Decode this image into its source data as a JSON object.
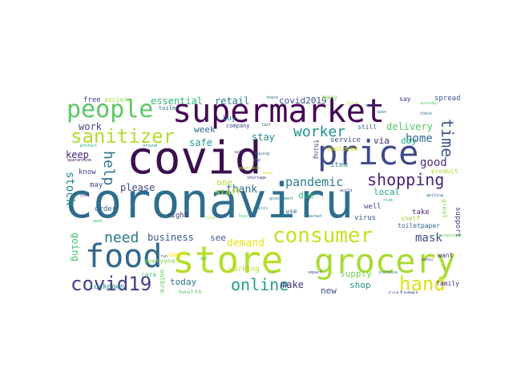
{
  "words": [
    {
      "text": "coronaviru",
      "color": "#2e6e8e"
    },
    {
      "text": "covid",
      "color": "#3b0f4f"
    },
    {
      "text": "store",
      "color": "#b5de2b"
    },
    {
      "text": "grocery",
      "color": "#a8db34"
    },
    {
      "text": "supermarket",
      "color": "#440154"
    },
    {
      "text": "price",
      "color": "#3e4a89"
    },
    {
      "text": "consumer",
      "color": "#c8e020"
    },
    {
      "text": "food",
      "color": "#31688e"
    },
    {
      "text": "people",
      "color": "#5cc863"
    },
    {
      "text": "covid19",
      "color": "#433e85"
    },
    {
      "text": "hand",
      "color": "#d8e219"
    },
    {
      "text": "sanitizer",
      "color": "#b0dd2f"
    },
    {
      "text": "shopping",
      "color": "#482475"
    },
    {
      "text": "online",
      "color": "#1fa187"
    },
    {
      "text": "worker",
      "color": "#21918c"
    },
    {
      "text": "need",
      "color": "#2a788e"
    },
    {
      "text": "time",
      "color": "#3b528b"
    },
    {
      "text": "help",
      "color": "#2c738e"
    },
    {
      "text": "pandemic",
      "color": "#277f8e"
    },
    {
      "text": "stock",
      "color": "#25858e"
    },
    {
      "text": "mask",
      "color": "#3e4989"
    },
    {
      "text": "demand",
      "color": "#e5e419"
    },
    {
      "text": "please",
      "color": "#404688"
    },
    {
      "text": "thank",
      "color": "#2d708e"
    },
    {
      "text": "home",
      "color": "#31688e"
    },
    {
      "text": "business",
      "color": "#38588c"
    },
    {
      "text": "good",
      "color": "#472c7a"
    },
    {
      "text": "make",
      "color": "#46337f"
    },
    {
      "text": "going",
      "color": "#4ac16d"
    },
    {
      "text": "essential",
      "color": "#35b779"
    },
    {
      "text": "retail",
      "color": "#2a788e"
    },
    {
      "text": "delivery",
      "color": "#54c568"
    },
    {
      "text": "work",
      "color": "#3f4788"
    },
    {
      "text": "keep",
      "color": "#482677"
    },
    {
      "text": "safe",
      "color": "#1e9b8a"
    },
    {
      "text": "stay",
      "color": "#23888e"
    },
    {
      "text": "week",
      "color": "#2f6b8e"
    },
    {
      "text": "covid2019",
      "color": "#3a548c"
    },
    {
      "text": "day",
      "color": "#29af7f"
    },
    {
      "text": "local",
      "color": "#20a386"
    },
    {
      "text": "due",
      "color": "#2db27d"
    },
    {
      "text": "staff",
      "color": "#c0df25"
    },
    {
      "text": "one",
      "color": "#addc30"
    },
    {
      "text": "see",
      "color": "#365c8d"
    },
    {
      "text": "today",
      "color": "#2a778e"
    },
    {
      "text": "new",
      "color": "#3c508b"
    },
    {
      "text": "shop",
      "color": "#1f958b"
    },
    {
      "text": "supply",
      "color": "#75d054"
    },
    {
      "text": "via",
      "color": "#482071"
    },
    {
      "text": "know",
      "color": "#404588"
    },
    {
      "text": "may",
      "color": "#3d4d8a"
    },
    {
      "text": "order",
      "color": "#355f8d"
    },
    {
      "text": "right",
      "color": "#46307e"
    },
    {
      "text": "virus",
      "color": "#3a538b"
    },
    {
      "text": "take",
      "color": "#481d6f"
    },
    {
      "text": "free",
      "color": "#3f4889"
    },
    {
      "text": "social",
      "color": "#a0da39"
    },
    {
      "text": "buy",
      "color": "#24878e"
    },
    {
      "text": "care",
      "color": "#4cc26c"
    },
    {
      "text": "health",
      "color": "#56c667"
    },
    {
      "text": "working",
      "color": "#b5de2b"
    },
    {
      "text": "service",
      "color": "#3a538b"
    },
    {
      "text": "customer",
      "color": "#3b518b"
    },
    {
      "text": "spread",
      "color": "#38588c"
    },
    {
      "text": "support",
      "color": "#453882"
    },
    {
      "text": "lockdown",
      "color": "#23898e"
    },
    {
      "text": "everyone",
      "color": "#7ad151"
    },
    {
      "text": "family",
      "color": "#472a7a"
    },
    {
      "text": "toiletpaper",
      "color": "#33638d"
    },
    {
      "text": "shelf",
      "color": "#9bd93c"
    },
    {
      "text": "item",
      "color": "#27808e"
    },
    {
      "text": "paper",
      "color": "#fde725"
    },
    {
      "text": "want",
      "color": "#46327e"
    },
    {
      "text": "great",
      "color": "#8ed645"
    },
    {
      "text": "product",
      "color": "#a5db36"
    },
    {
      "text": "employee",
      "color": "#d2e21b"
    },
    {
      "text": "well",
      "color": "#3e4989"
    },
    {
      "text": "use",
      "color": "#38598c"
    },
    {
      "text": "many",
      "color": "#81d34d"
    },
    {
      "text": "say",
      "color": "#463480"
    },
    {
      "text": "still",
      "color": "#30698e"
    },
    {
      "text": "thing",
      "color": "#3f4788"
    },
    {
      "text": "company",
      "color": "#3e4c8a"
    },
    {
      "text": "outbreak",
      "color": "#65cb5e"
    },
    {
      "text": "toilet",
      "color": "#2f6c8e"
    },
    {
      "text": "economy",
      "color": "#5ec962"
    },
    {
      "text": "share",
      "color": "#31678e"
    },
    {
      "text": "last",
      "color": "#3b528b"
    },
    {
      "text": "back",
      "color": "#2c718e"
    },
    {
      "text": "first",
      "color": "#b8de29"
    },
    {
      "text": "open",
      "color": "#277f8e"
    },
    {
      "text": "sale",
      "color": "#46307e"
    },
    {
      "text": "amp",
      "color": "#2d708e"
    },
    {
      "text": "hour",
      "color": "#48c16e"
    },
    {
      "text": "crisis",
      "color": "#2b748e"
    },
    {
      "text": "line",
      "color": "#a2da37"
    },
    {
      "text": "life",
      "color": "#24868e"
    },
    {
      "text": "even",
      "color": "#cde11d"
    },
    {
      "text": "market",
      "color": "#2a768e"
    },
    {
      "text": "world",
      "color": "#433e85"
    },
    {
      "text": "risk",
      "color": "#1f9a8a"
    },
    {
      "text": "week",
      "color": "#35b779"
    },
    {
      "text": "case",
      "color": "#3f4889"
    },
    {
      "text": "cost",
      "color": "#482878"
    },
    {
      "text": "distancing",
      "color": "#5cc863"
    },
    {
      "text": "getting",
      "color": "#2e6e8e"
    },
    {
      "text": "protect",
      "color": "#1fa187"
    },
    {
      "text": "increase",
      "color": "#2c728e"
    },
    {
      "text": "impact",
      "color": "#3b528b"
    },
    {
      "text": "quarantine",
      "color": "#46085c"
    },
    {
      "text": "job",
      "color": "#67cc5c"
    },
    {
      "text": "government",
      "color": "#26818e"
    },
    {
      "text": "run",
      "color": "#3d4e8a"
    },
    {
      "text": "oil",
      "color": "#2fb47c"
    },
    {
      "text": "panic",
      "color": "#443983"
    },
    {
      "text": "buying",
      "color": "#33628d"
    },
    {
      "text": "around",
      "color": "#1f988b"
    },
    {
      "text": "shortage",
      "color": "#472d7b"
    },
    {
      "text": "check",
      "color": "#2c728e"
    },
    {
      "text": "available",
      "color": "#b5de2b"
    }
  ]
}
